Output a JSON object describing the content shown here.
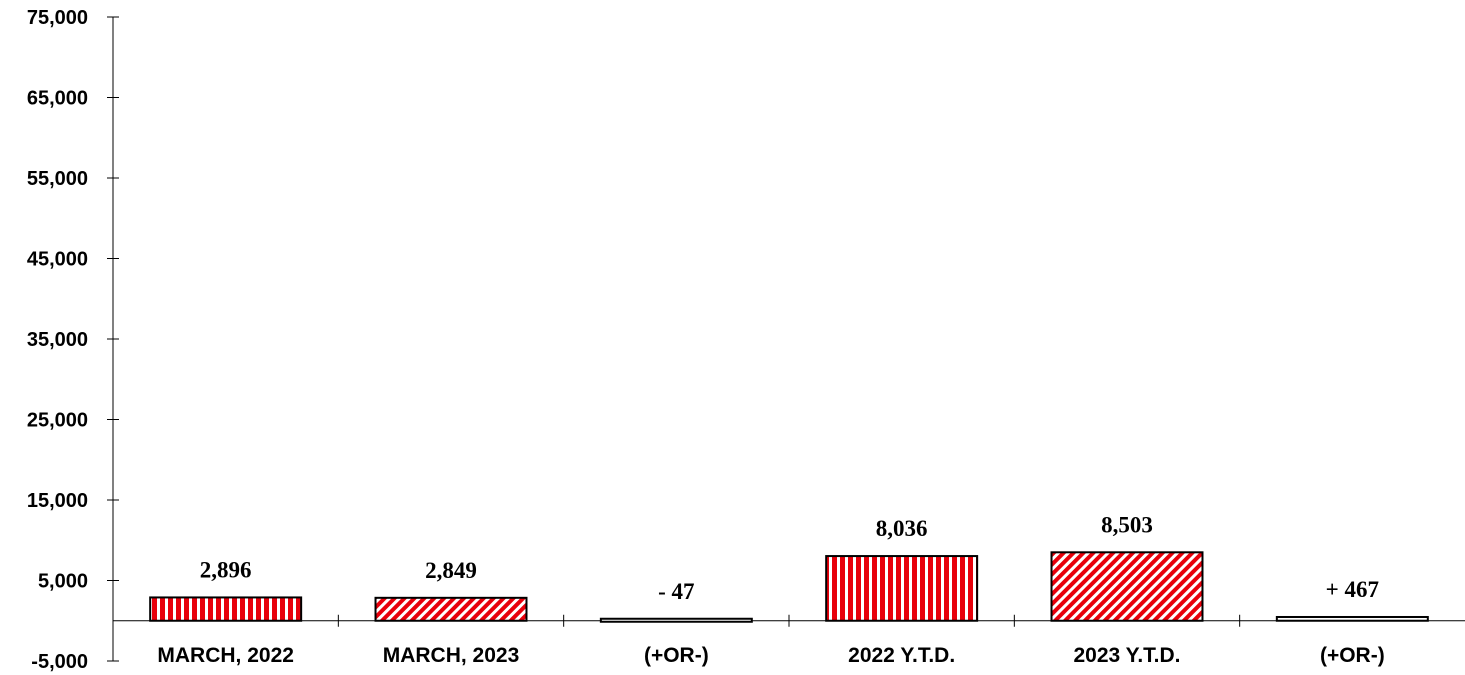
{
  "chart_data": {
    "type": "bar",
    "title": "",
    "xlabel": "",
    "ylabel": "",
    "ylim": [
      -5000,
      75000
    ],
    "yticks": [
      -5000,
      5000,
      15000,
      25000,
      35000,
      45000,
      55000,
      65000,
      75000
    ],
    "ytick_labels": [
      "-5,000",
      "5,000",
      "15,000",
      "25,000",
      "35,000",
      "45,000",
      "55,000",
      "65,000",
      "75,000"
    ],
    "categories": [
      "MARCH, 2022",
      "MARCH, 2023",
      "(+OR-)",
      "2022 Y.T.D.",
      "2023 Y.T.D.",
      "(+OR-)"
    ],
    "values": [
      2896,
      2849,
      -47,
      8036,
      8503,
      467
    ],
    "data_labels": [
      "2,896",
      "2,849",
      "- 47",
      "8,036",
      "8,503",
      "+ 467"
    ],
    "bar_patterns": [
      "vertical-stripes",
      "diagonal-hatch",
      "solid-white",
      "vertical-stripes",
      "diagonal-hatch",
      "solid-white"
    ],
    "colors": {
      "stripe": "#e8000b",
      "fill_background": "#ffffff",
      "outline": "#000000"
    },
    "grid": false,
    "legend": "none"
  }
}
